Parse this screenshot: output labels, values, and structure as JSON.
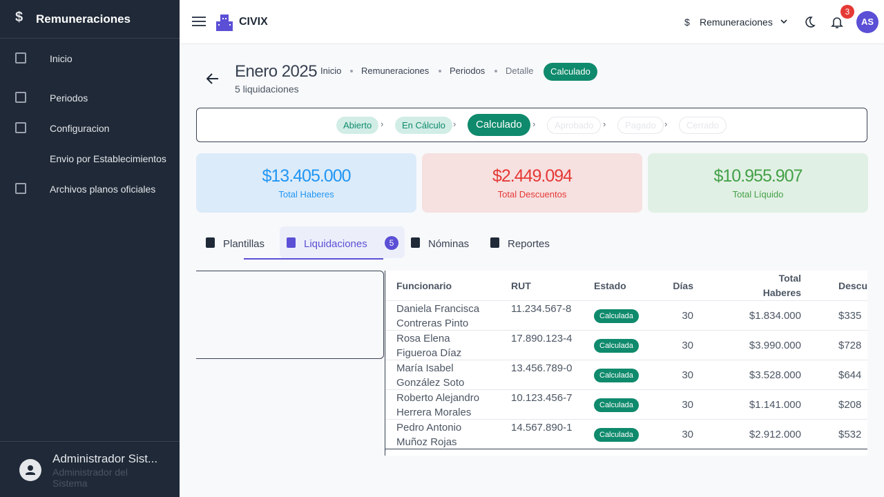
{
  "sidebar": {
    "title": "Remuneraciones",
    "items": [
      "Inicio",
      "Periodos",
      "Configuracion",
      "Envio por Establecimientos",
      "Archivos planos oficiales"
    ],
    "user": {
      "name": "Administrador Sist...",
      "role": "Administrador del Sistema"
    }
  },
  "header": {
    "brand": "CIVIX",
    "module": "Remuneraciones",
    "notifications": 3,
    "avatar": "AS"
  },
  "page": {
    "title": "Enero 2025",
    "subtitle": "5 liquidaciones",
    "breadcrumb": [
      "Inicio",
      "Remuneraciones",
      "Periodos",
      "Detalle"
    ],
    "status": "Calculado"
  },
  "steps": [
    "Abierto",
    "En Cálculo",
    "Calculado",
    "Aprobado",
    "Pagado",
    "Cerrado"
  ],
  "summary": [
    {
      "value": "$13.405.000",
      "label": "Total Haberes"
    },
    {
      "value": "$2.449.094",
      "label": "Total Descuentos"
    },
    {
      "value": "$10.955.907",
      "label": "Total Líquido"
    }
  ],
  "tabs": [
    {
      "label": "Plantillas"
    },
    {
      "label": "Liquidaciones",
      "badge": 5
    },
    {
      "label": "Nóminas"
    },
    {
      "label": "Reportes"
    }
  ],
  "table": {
    "columns": [
      "Funcionario",
      "RUT",
      "Estado",
      "Días",
      "Total Haberes",
      "Descu"
    ],
    "rows": [
      [
        "Daniela Francisca Contreras Pinto",
        "11.234.567-8",
        "Calculada",
        30,
        "$1.834.000",
        "$335"
      ],
      [
        "Rosa Elena Figueroa Díaz",
        "17.890.123-4",
        "Calculada",
        30,
        "$3.990.000",
        "$728"
      ],
      [
        "María Isabel González Soto",
        "13.456.789-0",
        "Calculada",
        30,
        "$3.528.000",
        "$644"
      ],
      [
        "Roberto Alejandro Herrera Morales",
        "10.123.456-7",
        "Calculada",
        30,
        "$1.141.000",
        "$208"
      ],
      [
        "Pedro Antonio Muñoz Rojas",
        "14.567.890-1",
        "Calculada",
        30,
        "$2.912.000",
        "$532"
      ]
    ]
  }
}
